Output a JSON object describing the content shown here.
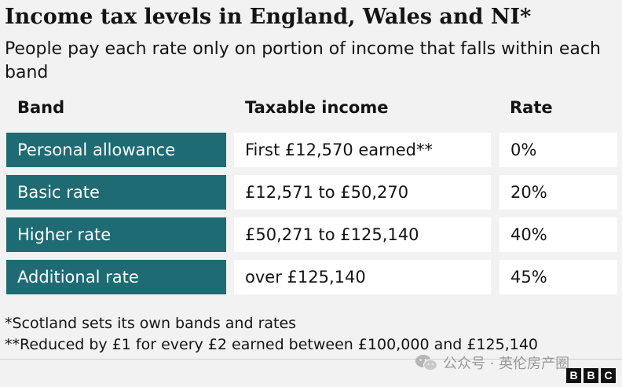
{
  "title": "Income tax levels in England, Wales and NI*",
  "subtitle": "People pay each rate only on portion of income that falls within each band",
  "table": {
    "headers": {
      "band": "Band",
      "income": "Taxable income",
      "rate": "Rate"
    },
    "rows": [
      {
        "band": "Personal allowance",
        "income": "First £12,570 earned**",
        "rate": "0%"
      },
      {
        "band": "Basic rate",
        "income": "£12,571 to £50,270",
        "rate": "20%"
      },
      {
        "band": "Higher rate",
        "income": "£50,271 to £125,140",
        "rate": "40%"
      },
      {
        "band": "Additional rate",
        "income": "over £125,140",
        "rate": "45%"
      }
    ]
  },
  "footnotes": [
    "*Scotland sets its own bands and rates",
    "**Reduced by £1 for every £2 earned between £100,000 and £125,140"
  ],
  "watermark": {
    "text": "公众号 · 英伦房产圈",
    "icon": "wechat-icon"
  },
  "logo": {
    "letters": [
      "B",
      "B",
      "C"
    ]
  },
  "colors": {
    "band_cell": "#1e6b73",
    "value_cell": "#ffffff",
    "background": "#f2f2f2"
  }
}
